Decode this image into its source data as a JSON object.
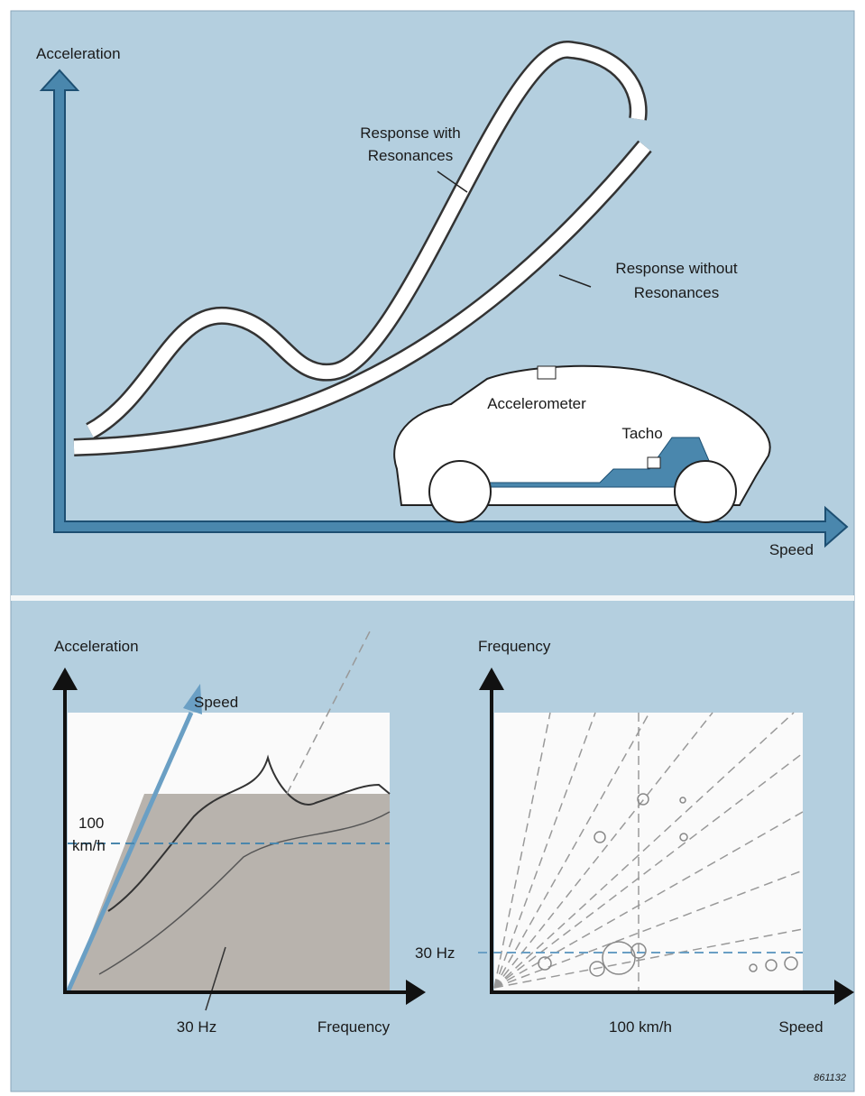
{
  "top_chart": {
    "y_axis_label": "Acceleration",
    "x_axis_label": "Speed",
    "curve_with_resonances": [
      "Response with",
      "Resonances"
    ],
    "curve_without_resonances": [
      "Response without",
      "Resonances"
    ],
    "car_labels": {
      "accelerometer": "Accelerometer",
      "tacho": "Tacho"
    }
  },
  "waterfall_plot": {
    "y_axis_label": "Acceleration",
    "depth_axis_label": "Speed",
    "speed_marker": [
      "100",
      "km/h"
    ],
    "frequency_marker": "30 Hz",
    "x_axis_label": "Frequency"
  },
  "order_plot": {
    "y_axis_label": "Frequency",
    "frequency_marker": "30 Hz",
    "speed_marker": "100 km/h",
    "x_axis_label": "Speed"
  },
  "figure_id": "861132"
}
